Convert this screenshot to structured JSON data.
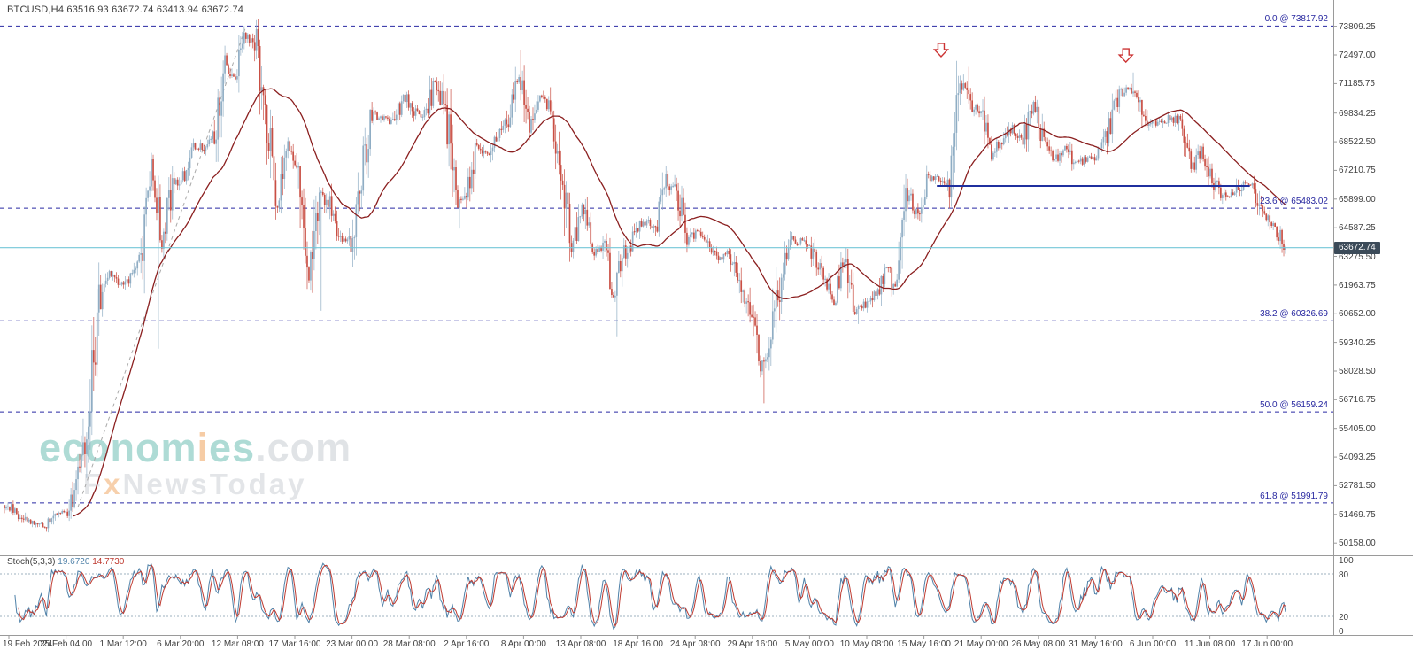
{
  "header": {
    "symbol_line": "BTCUSD,H4 63516.93 63672.74 63413.94 63672.74"
  },
  "watermark": {
    "brand_part1": "econom",
    "brand_part2": "i",
    "brand_part3": "es",
    "brand_suffix": ".com",
    "tagline_part1": "F",
    "tagline_part2": "x",
    "tagline_part3": "NewsToday"
  },
  "price_axis": {
    "labels": [
      "73809.25",
      "72497.00",
      "71185.75",
      "69834.25",
      "68522.50",
      "67210.75",
      "65899.00",
      "64587.25",
      "63275.50",
      "61963.75",
      "60652.00",
      "59340.25",
      "58028.50",
      "56716.75",
      "55405.00",
      "54093.25",
      "52781.50",
      "51469.75",
      "50158.00"
    ],
    "current_price": "63672.74"
  },
  "time_axis": {
    "labels": [
      "19 Feb 2024",
      "25 Feb 04:00",
      "1 Mar 12:00",
      "6 Mar 20:00",
      "12 Mar 08:00",
      "17 Mar 16:00",
      "23 Mar 00:00",
      "28 Mar 08:00",
      "2 Apr 16:00",
      "8 Apr 00:00",
      "13 Apr 08:00",
      "18 Apr 16:00",
      "24 Apr 08:00",
      "29 Apr 16:00",
      "5 May 00:00",
      "10 May 08:00",
      "15 May 16:00",
      "21 May 00:00",
      "26 May 08:00",
      "31 May 16:00",
      "6 Jun 00:00",
      "11 Jun 08:00",
      "17 Jun 00:00"
    ]
  },
  "fibonacci_levels": [
    {
      "label": "0.0 @ 73817.92",
      "value": 73817.92
    },
    {
      "label": "23.6 @ 65483.02",
      "value": 65483.02
    },
    {
      "label": "38.2 @ 60326.69",
      "value": 60326.69
    },
    {
      "label": "50.0 @ 56159.24",
      "value": 56159.24
    },
    {
      "label": "61.8 @ 51991.79",
      "value": 51991.79
    }
  ],
  "indicator_panel": {
    "name": "Stoch(5,3,3)",
    "value_main": "19.6720",
    "value_signal": "14.7730",
    "axis_labels": [
      "100",
      "80",
      "20",
      "0"
    ],
    "axis_values": [
      100,
      80,
      20,
      0
    ],
    "levels_dashed": [
      80,
      20
    ]
  },
  "colors": {
    "background": "#ffffff",
    "up_candle": "#8fadc4",
    "down_candle": "#c94f44",
    "ma_line": "#8b1f1f",
    "fib_line": "#2929a3",
    "fib_text": "#2828a0",
    "trendline": "#1f2f9e",
    "current_price_line": "#74c7d8",
    "price_badge_bg": "#3c4b59",
    "price_badge_text": "#ffffff",
    "stoch_main": "#4f81a8",
    "stoch_signal": "#bf3a30",
    "stoch_level": "#9db0bf",
    "axis_text": "#3f3f3f",
    "divider": "#9a9a9a",
    "dashed_guide": "#a9a9a9",
    "arrow": "#cc3333"
  },
  "chart_data": {
    "type": "candlestick",
    "symbol": "BTCUSD",
    "timeframe": "H4",
    "last_ohlc": {
      "open": 63516.93,
      "high": 63672.74,
      "low": 63413.94,
      "close": 63672.74
    },
    "ylim": [
      49800,
      74200
    ],
    "x_range": [
      "19 Feb 2024",
      "20 Jun 2024"
    ],
    "candles_per_day": 6,
    "daily_close_anchors": [
      [
        0,
        51900
      ],
      [
        1,
        51600
      ],
      [
        2,
        51250
      ],
      [
        3,
        51000
      ],
      [
        4,
        50950
      ],
      [
        5,
        51550
      ],
      [
        6,
        51600
      ],
      [
        7,
        53000
      ],
      [
        8,
        56500
      ],
      [
        9,
        61300
      ],
      [
        10,
        62400
      ],
      [
        11,
        62000
      ],
      [
        12,
        62350
      ],
      [
        13,
        63100
      ],
      [
        14,
        67600
      ],
      [
        15,
        63900
      ],
      [
        16,
        66400
      ],
      [
        17,
        66900
      ],
      [
        18,
        68200
      ],
      [
        19,
        68300
      ],
      [
        20,
        68900
      ],
      [
        21,
        72000
      ],
      [
        22,
        71400
      ],
      [
        23,
        73400
      ],
      [
        24,
        72900
      ],
      [
        25,
        69300
      ],
      [
        26,
        65700
      ],
      [
        27,
        68200
      ],
      [
        28,
        67500
      ],
      [
        29,
        62100
      ],
      [
        30,
        66600
      ],
      [
        31,
        65500
      ],
      [
        32,
        63900
      ],
      [
        33,
        64100
      ],
      [
        34,
        67100
      ],
      [
        35,
        69800
      ],
      [
        36,
        69600
      ],
      [
        37,
        69400
      ],
      [
        38,
        70700
      ],
      [
        39,
        69900
      ],
      [
        40,
        69700
      ],
      [
        41,
        71200
      ],
      [
        42,
        69800
      ],
      [
        43,
        65700
      ],
      [
        44,
        65900
      ],
      [
        45,
        68400
      ],
      [
        46,
        67900
      ],
      [
        47,
        68800
      ],
      [
        48,
        69500
      ],
      [
        49,
        71500
      ],
      [
        50,
        69200
      ],
      [
        51,
        70500
      ],
      [
        52,
        70000
      ],
      [
        53,
        67200
      ],
      [
        54,
        63500
      ],
      [
        55,
        65600
      ],
      [
        56,
        63500
      ],
      [
        57,
        63800
      ],
      [
        58,
        61400
      ],
      [
        59,
        63300
      ],
      [
        60,
        64300
      ],
      [
        61,
        64900
      ],
      [
        62,
        64600
      ],
      [
        63,
        66700
      ],
      [
        64,
        66300
      ],
      [
        65,
        64100
      ],
      [
        66,
        64400
      ],
      [
        67,
        63800
      ],
      [
        68,
        63200
      ],
      [
        69,
        63400
      ],
      [
        70,
        62000
      ],
      [
        71,
        60700
      ],
      [
        72,
        58300
      ],
      [
        73,
        59200
      ],
      [
        74,
        62800
      ],
      [
        75,
        63900
      ],
      [
        76,
        64000
      ],
      [
        77,
        63300
      ],
      [
        78,
        62400
      ],
      [
        79,
        61300
      ],
      [
        80,
        63000
      ],
      [
        81,
        60900
      ],
      [
        82,
        61000
      ],
      [
        83,
        61600
      ],
      [
        84,
        62800
      ],
      [
        85,
        61700
      ],
      [
        86,
        66100
      ],
      [
        87,
        65300
      ],
      [
        88,
        66900
      ],
      [
        89,
        66800
      ],
      [
        90,
        66400
      ],
      [
        91,
        71200
      ],
      [
        92,
        70200
      ],
      [
        93,
        69800
      ],
      [
        94,
        68000
      ],
      [
        95,
        68500
      ],
      [
        96,
        69200
      ],
      [
        97,
        68600
      ],
      [
        98,
        70300
      ],
      [
        99,
        68300
      ],
      [
        100,
        67700
      ],
      [
        101,
        68300
      ],
      [
        102,
        67600
      ],
      [
        103,
        67700
      ],
      [
        104,
        67800
      ],
      [
        105,
        68800
      ],
      [
        106,
        70500
      ],
      [
        107,
        71000
      ],
      [
        108,
        70700
      ],
      [
        109,
        69400
      ],
      [
        110,
        69300
      ],
      [
        111,
        69600
      ],
      [
        112,
        69400
      ],
      [
        113,
        67300
      ],
      [
        114,
        68100
      ],
      [
        115,
        66900
      ],
      [
        116,
        66000
      ],
      [
        117,
        66100
      ],
      [
        118,
        66600
      ],
      [
        119,
        66400
      ],
      [
        120,
        65100
      ],
      [
        121,
        64600
      ],
      [
        122,
        63672.74
      ]
    ],
    "key_extremes": [
      {
        "day": 24.1,
        "high": 73817.92
      },
      {
        "day": 14.7,
        "low": 59050
      },
      {
        "day": 30.2,
        "low": 60790
      },
      {
        "day": 43.3,
        "low": 64550
      },
      {
        "day": 49.2,
        "high": 72700
      },
      {
        "day": 54.3,
        "low": 60565
      },
      {
        "day": 58.4,
        "low": 59620
      },
      {
        "day": 72.3,
        "low": 56552
      },
      {
        "day": 81.3,
        "low": 60180
      },
      {
        "day": 91.8,
        "high": 71950
      },
      {
        "day": 107.5,
        "high": 71700
      },
      {
        "day": 121.9,
        "low": 63280
      }
    ],
    "moving_average": {
      "period": 40
    },
    "overlays": {
      "horizontal_trendline": {
        "price": 66500,
        "day_start": 88.8,
        "day_end": 118.6
      },
      "diagonal_dashed_line": {
        "day_start": 7,
        "price_start": 51800,
        "day_end": 23,
        "price_end": 73800
      },
      "down_arrows": [
        {
          "day": 89.2,
          "price": 72500
        },
        {
          "day": 106.8,
          "price": 72250
        }
      ]
    },
    "stochastic": {
      "k_period": 5,
      "slowing": 3,
      "d_period": 3
    }
  }
}
